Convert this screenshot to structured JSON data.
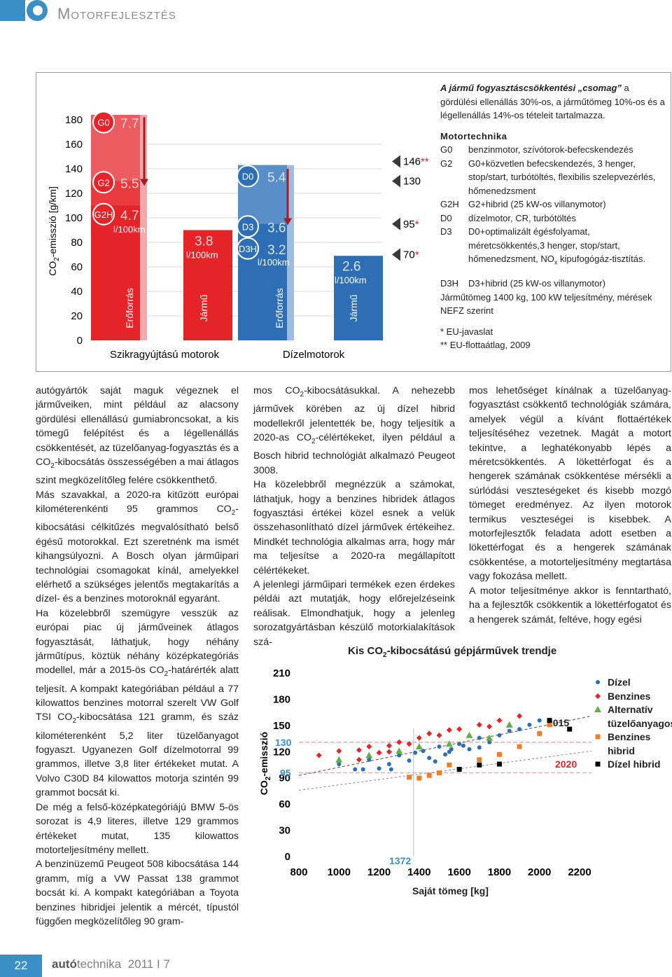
{
  "header": {
    "title": "Motorfejlesztés"
  },
  "figure1": {
    "ylabel": "CO2-emisszió [g/km]",
    "yticks": [
      "180",
      "160",
      "140",
      "120",
      "100",
      "80",
      "60",
      "40",
      "20",
      "0"
    ],
    "group_left": "Szikragyújtású motorok",
    "group_right": "Dízelmotorok",
    "bar_labels": [
      "Erőforrás",
      "Jármű",
      "Erőforrás",
      "Jármű"
    ],
    "petrol_steps": [
      "G0",
      "G2",
      "G2H"
    ],
    "petrol_values": [
      "7.7",
      "5.5",
      "4.7"
    ],
    "petrol_unit": "l/100km",
    "petrol_vehicle": "3.8",
    "petrol_vehicle_unit": "l/100km",
    "diesel_steps": [
      "D0",
      "D3",
      "D3H"
    ],
    "diesel_values": [
      "5.4",
      "3.6",
      "3.2"
    ],
    "diesel_unit": "l/100km",
    "diesel_vehicle": "2.6",
    "diesel_vehicle_unit": "l/100km",
    "markers": [
      "146**",
      "130",
      "95*",
      "70*"
    ],
    "colors": {
      "red": "#e5242a",
      "light_red": "#f3a9ab",
      "blue": "#2e6eb5",
      "light_blue": "#9ebde0",
      "grey": "#8a8c8f"
    }
  },
  "legend": {
    "intro_bold": "A jármű fogyasztáscsökkentési „csomag”",
    "intro_rest": " a gördülési ellenállás 30%-os, a járműtömeg 10%-os és a légellenállás 14%-os tételeit tartalmazza.",
    "heading": "Motortechnika",
    "rows": [
      {
        "k": "G0",
        "v": "benzinmotor, szívótorok-befecskendezés"
      },
      {
        "k": "G2",
        "v": "G0+közvetlen befecskendezés, 3 henger, stop/start, turbótöltés, flexibilis szelepvezérlés, hőmenedzsment"
      },
      {
        "k": "G2H",
        "v": "G2+hibrid (25 kW-os villanymotor)"
      },
      {
        "k": "D0",
        "v": "dízelmotor, CR, turbótöltés"
      },
      {
        "k": "D3",
        "v": "D0+optimalizált égésfolyamat, méretcsökkentés,3 henger, stop/start, hőmenedzsment, NOx kipufogógáz-tisztítás."
      },
      {
        "k": "D3H",
        "v": "D3+hibrid (25 kW-os villanymotor)"
      }
    ],
    "mass_line": "Járműtömeg 1400 kg, 100 kW teljesítmény, mérések NEFZ szerint",
    "note1": "* EU-javaslat",
    "note2": "** EU-flottaátlag, 2009"
  },
  "col1": [
    "autógyártók saját maguk végeznek el járműveiken, mint például az alacsony gördülési ellenállású gumiabroncsokat, a kis tömegű felépítést és a légellenállás csökkentését, az tüzelőanyag-fogyasztás és a CO2-kibocsátás összességében a mai átlagos szint megközelítőleg felére csökkenthető.",
    "Más szavakkal, a 2020-ra kitűzött európai kilométerenkénti 95 grammos CO2-kibocsátási célkitűzés megvalósítható belső égésű motorokkal. Ezt szeretnénk ma ismét kihangsúlyozni. A Bosch olyan járműipari technológiai csomagokat kínál, amelyekkel elérhető a szükséges jelentős megtakarítás a dízel- és a benzines motoroknál egyaránt.",
    "Ha közelebbről szemügyre vesszük az európai piac új járműveinek átlagos fogyasztását, láthatjuk, hogy néhány járműtípus, köztük néhány középkategóriás modellel, már a 2015-ös CO2-határérték alatt teljesít. A kompakt kategóriában például a 77 kilowattos benzines motorral szerelt VW Golf TSI CO2-kibocsátása 121 gramm, és száz kilométerenként 5,2 liter tüzelőanyagot fogyaszt. Ugyanezen Golf dízelmotorral 99 grammos, illetve 3,8 liter értékeket mutat. A Volvo C30D 84 kilowattos motorja szintén 99 grammot bocsát ki.",
    "De még a felső-középkategóriájú BMW 5-ös sorozat is 4,9 literes, illetve 129 grammos értékeket mutat, 135 kilowattos motorteljesítmény mellett.",
    "A benzinüzemű Peugeot 508 kibocsátása 144 gramm, míg a VW Passat 138 grammot bocsát ki. A kompakt kategóriában a Toyota benzines hibridjei jelentik a mércét, típustól függően megközelítőleg 90 gram-"
  ],
  "col2": [
    "mos CO2-kibocsátásukkal. A nehezebb járművek körében az új dízel hibrid modellekről jelentették be, hogy teljesítik a 2020-as CO2-célértékeket, ilyen például a Bosch hibrid technológiát alkalmazó Peugeot 3008.",
    "Ha közelebbről megnézzük a számokat, láthatjuk, hogy a benzines hibridek átlagos fogyasztási értékei közel esnek a velük összehasonlítható dízel járművek értékeihez. Mindkét technológia alkalmas arra, hogy már ma teljesítse a 2020-ra megállapított célértékeket.",
    "A jelenlegi járműipari termékek ezen érdekes példái azt mutatják, hogy előrejelzéseink reálisak. Elmondhatjuk, hogy a jelenleg sorozatgyártásban készülő motorkialakítások szá-"
  ],
  "col3": [
    "mos lehetőséget kínálnak a tüzelőanyag-fogyasztást csökkentő technológiák számára, amelyek végül a kívánt flottaértékek teljesítéséhez vezetnek. Magát a motort tekintve, a leghatékonyabb lépés a méretcsökkentés. A lökettérfogat és a hengerek számának csökkentése mérsékli a súrlódási veszteségeket és kisebb mozgó tömeget eredményez. Az ilyen motorok termikus veszteségei is kisebbek. A motorfejlesztők feladata adott esetben a lökettérfogat és a hengerek számának csökkentése, a motorteljesítmény megtartása vagy fokozása mellett.",
    "A motor teljesítménye akkor is fenntartható, ha a fejlesztők csökkentik a lökettérfogatot és a hengerek számát, feltéve, hogy egési"
  ],
  "chart_data": {
    "type": "scatter",
    "title": "Kis CO2-kibocsátású gépjárművek trendje",
    "xlabel": "Saját tömeg [kg]",
    "ylabel": "CO2-emisszió",
    "xticks": [
      "800",
      "1000",
      "1200",
      "1400",
      "1600",
      "1800",
      "2000",
      "2200"
    ],
    "yticks": [
      "210",
      "180",
      "150",
      "120",
      "90",
      "60",
      "30",
      "0"
    ],
    "annotations": {
      "y130": "130",
      "y95": "95",
      "x1372": "1372",
      "year2015": "2015",
      "year2020": "2020"
    },
    "series": [
      {
        "name": "Dízel",
        "color": "#2e6eb5",
        "marker": "circle",
        "points": [
          [
            1000,
            105
          ],
          [
            1080,
            99
          ],
          [
            1150,
            110
          ],
          [
            1200,
            100
          ],
          [
            1250,
            105
          ],
          [
            1300,
            115
          ],
          [
            1350,
            109
          ],
          [
            1380,
            118
          ],
          [
            1420,
            120
          ],
          [
            1450,
            112
          ],
          [
            1500,
            125
          ],
          [
            1550,
            119
          ],
          [
            1600,
            128
          ],
          [
            1650,
            122
          ],
          [
            1700,
            135
          ],
          [
            1750,
            130
          ],
          [
            1800,
            138
          ],
          [
            1850,
            143
          ],
          [
            1900,
            145
          ],
          [
            1950,
            150
          ],
          [
            2000,
            155
          ],
          [
            1480,
            108
          ],
          [
            1530,
            116
          ],
          [
            1620,
            126
          ],
          [
            1700,
            124
          ],
          [
            1560,
            122
          ],
          [
            1260,
            99
          ],
          [
            1120,
            99
          ]
        ]
      },
      {
        "name": "Benzines",
        "color": "#e5242a",
        "marker": "diamond",
        "points": [
          [
            900,
            115
          ],
          [
            1000,
            120
          ],
          [
            1100,
            121
          ],
          [
            1150,
            125
          ],
          [
            1200,
            118
          ],
          [
            1250,
            126
          ],
          [
            1300,
            130
          ],
          [
            1350,
            128
          ],
          [
            1400,
            135
          ],
          [
            1500,
            138
          ],
          [
            1550,
            144
          ],
          [
            1600,
            145
          ],
          [
            1700,
            150
          ],
          [
            1750,
            148
          ],
          [
            1800,
            155
          ],
          [
            1900,
            160
          ],
          [
            1100,
            110
          ],
          [
            1250,
            119
          ],
          [
            1450,
            140
          ]
        ]
      },
      {
        "name": "Alternatív tüzelőanyagos",
        "color": "#62b04b",
        "marker": "triangle",
        "points": [
          [
            1000,
            110
          ],
          [
            1150,
            115
          ],
          [
            1300,
            120
          ],
          [
            1400,
            125
          ],
          [
            1550,
            128
          ],
          [
            1750,
            135
          ],
          [
            1850,
            150
          ],
          [
            1650,
            138
          ]
        ]
      },
      {
        "name": "Benzines hibrid",
        "color": "#f07e26",
        "marker": "square",
        "points": [
          [
            1400,
            89
          ],
          [
            1450,
            92
          ],
          [
            1500,
            95
          ],
          [
            1550,
            104
          ],
          [
            1700,
            110
          ],
          [
            1800,
            116
          ],
          [
            1900,
            125
          ],
          [
            2000,
            140
          ],
          [
            2050,
            150
          ],
          [
            1350,
            90
          ]
        ]
      },
      {
        "name": "Dízel hibrid",
        "color": "#000000",
        "marker": "square",
        "points": [
          [
            1600,
            99
          ],
          [
            1700,
            104
          ],
          [
            2050,
            155
          ],
          [
            2150,
            145
          ],
          [
            1800,
            105
          ]
        ]
      }
    ]
  },
  "footer": {
    "page": "22",
    "brand_bold": "autó",
    "brand_rest": "technika",
    "issue": "2011 I 7"
  }
}
